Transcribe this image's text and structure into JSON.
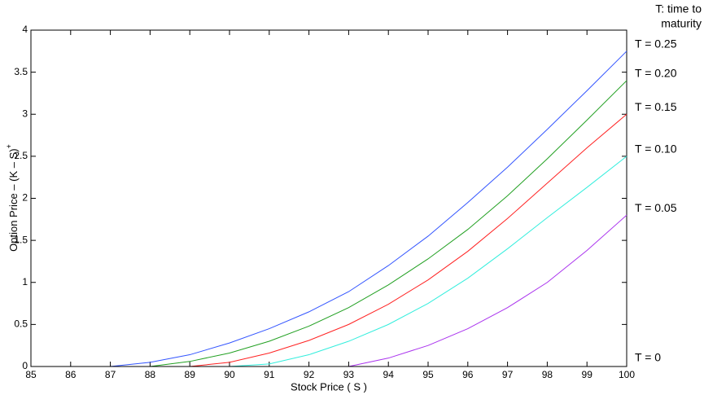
{
  "chart_data": {
    "type": "line",
    "xlabel": "Stock Price ( S )",
    "ylabel": "Option Price – (K – S)",
    "ylabel_superscript": "+",
    "legend_title": [
      "T: time to",
      "maturity"
    ],
    "x": [
      85,
      86,
      87,
      88,
      89,
      90,
      91,
      92,
      93,
      94,
      95,
      96,
      97,
      98,
      99,
      100
    ],
    "series": [
      {
        "name": "T = 0.25",
        "color": "#3355ff",
        "values": [
          null,
          null,
          0,
          0.05,
          0.14,
          0.28,
          0.45,
          0.65,
          0.89,
          1.2,
          1.55,
          1.95,
          2.37,
          2.82,
          3.28,
          3.75
        ]
      },
      {
        "name": "T = 0.20",
        "color": "#22a022",
        "values": [
          null,
          null,
          null,
          0,
          0.06,
          0.16,
          0.3,
          0.48,
          0.7,
          0.97,
          1.28,
          1.63,
          2.03,
          2.47,
          2.93,
          3.4
        ]
      },
      {
        "name": "T = 0.15",
        "color": "#ff2222",
        "values": [
          null,
          null,
          null,
          null,
          0,
          0.05,
          0.16,
          0.31,
          0.5,
          0.74,
          1.03,
          1.37,
          1.76,
          2.18,
          2.6,
          3.0
        ]
      },
      {
        "name": "T = 0.10",
        "color": "#33eedd",
        "values": [
          null,
          null,
          null,
          null,
          null,
          0,
          0.03,
          0.14,
          0.3,
          0.5,
          0.75,
          1.05,
          1.4,
          1.77,
          2.13,
          2.5
        ]
      },
      {
        "name": "T = 0.05",
        "color": "#aa33ee",
        "values": [
          null,
          null,
          null,
          null,
          null,
          null,
          null,
          null,
          0,
          0.1,
          0.25,
          0.45,
          0.7,
          1.0,
          1.38,
          1.8
        ]
      },
      {
        "name": "T = 0",
        "color": "#000000",
        "values": [
          0,
          0,
          0,
          0,
          0,
          0,
          0,
          0,
          0,
          0,
          0,
          0,
          0,
          0,
          0,
          0
        ]
      }
    ],
    "xlim": [
      85,
      100
    ],
    "xticks": [
      85,
      86,
      87,
      88,
      89,
      90,
      91,
      92,
      93,
      94,
      95,
      96,
      97,
      98,
      99,
      100
    ],
    "ylim": [
      0,
      4
    ],
    "yticks": [
      0,
      0.5,
      1,
      1.5,
      2,
      2.5,
      3,
      3.5,
      4
    ],
    "grid": false
  }
}
